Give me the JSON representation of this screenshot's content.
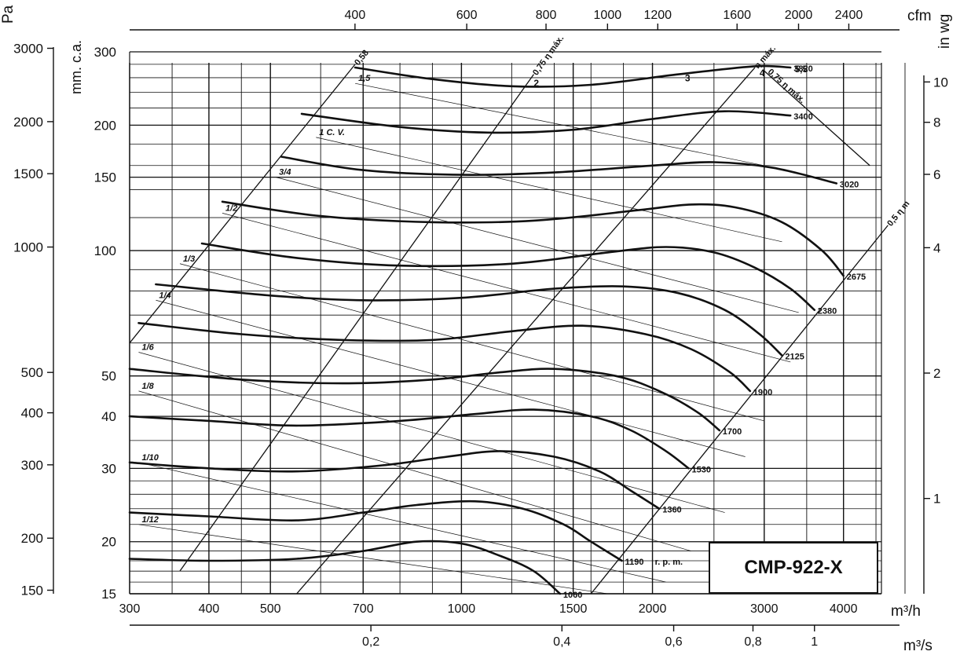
{
  "chart_data": {
    "type": "line",
    "model": "CMP-922-X",
    "axis_titles": {
      "left_outer": "Pa",
      "left_inner": "mm. c.a.",
      "right": "in wg",
      "top": "cfm",
      "bottom_primary": "m³/h",
      "bottom_secondary": "m³/s"
    },
    "x_scale": "log",
    "y_scale": "log",
    "x_range_m3h": [
      300,
      5000
    ],
    "y_range_mmca": [
      15,
      300
    ],
    "x_ticks_m3h": [
      300,
      400,
      500,
      700,
      1000,
      1500,
      2000,
      3000,
      4000
    ],
    "x_tick_labels_m3h": [
      "300",
      "400",
      "500",
      "700",
      "1000",
      "1500",
      "2000",
      "3000",
      "4000"
    ],
    "x_ticks_m3s": [
      0.2,
      0.4,
      0.6,
      0.8,
      1.0
    ],
    "x_tick_labels_m3s": [
      "0,2",
      "0,4",
      "0,6",
      "0,8",
      "1"
    ],
    "x_ticks_cfm": [
      400,
      600,
      800,
      1000,
      1200,
      1600,
      2000,
      2400
    ],
    "x_tick_labels_cfm": [
      "400",
      "600",
      "800",
      "1000",
      "1200",
      "1600",
      "2000",
      "2400"
    ],
    "y_ticks_mmca": [
      15,
      20,
      30,
      40,
      50,
      100,
      150,
      200,
      300
    ],
    "y_tick_labels_mmca": [
      "15",
      "20",
      "30",
      "40",
      "50",
      "100",
      "150",
      "200",
      "300"
    ],
    "y_ticks_pa": [
      150,
      200,
      300,
      400,
      500,
      1000,
      1500,
      2000,
      3000
    ],
    "y_tick_labels_pa": [
      "150",
      "200",
      "300",
      "400",
      "500",
      "1000",
      "1500",
      "2000",
      "3000"
    ],
    "y_ticks_inwg": [
      1,
      2,
      4,
      6,
      8,
      10
    ],
    "y_tick_labels_inwg": [
      "1",
      "2",
      "4",
      "6",
      "8",
      "10"
    ],
    "grid": true,
    "speed_unit_label": "r. p. m.",
    "series": [
      {
        "name": "3820",
        "x": [
          680,
          900,
          1200,
          1600,
          2200,
          2900,
          3300
        ],
        "y": [
          275,
          258,
          248,
          250,
          265,
          277,
          275
        ]
      },
      {
        "name": "3400",
        "x": [
          560,
          800,
          1100,
          1500,
          2000,
          2600,
          3300
        ],
        "y": [
          213,
          198,
          192,
          195,
          207,
          216,
          211
        ]
      },
      {
        "name": "3020",
        "x": [
          520,
          700,
          1000,
          1400,
          2000,
          2500,
          3100,
          3900
        ],
        "y": [
          168,
          156,
          152,
          154,
          160,
          163,
          158,
          145
        ]
      },
      {
        "name": "2675",
        "x": [
          420,
          600,
          900,
          1300,
          1900,
          2300,
          2700,
          3200,
          3700,
          4000
        ],
        "y": [
          131,
          121,
          117,
          118,
          125,
          129,
          127,
          117,
          100,
          87
        ]
      },
      {
        "name": "2380",
        "x": [
          390,
          550,
          800,
          1200,
          1700,
          2100,
          2500,
          2900,
          3300,
          3600
        ],
        "y": [
          104,
          96,
          92,
          93,
          99,
          102,
          99,
          91,
          81,
          72
        ]
      },
      {
        "name": "2125",
        "x": [
          330,
          500,
          700,
          1000,
          1400,
          1800,
          2200,
          2600,
          2950,
          3200
        ],
        "y": [
          83,
          78,
          76,
          77,
          81,
          82,
          79,
          72,
          63,
          56
        ]
      },
      {
        "name": "1900",
        "x": [
          310,
          450,
          650,
          900,
          1200,
          1550,
          1950,
          2300,
          2650,
          2850
        ],
        "y": [
          67,
          63,
          61,
          61,
          64,
          66,
          63,
          58,
          51,
          46
        ]
      },
      {
        "name": "1700",
        "x": [
          300,
          450,
          650,
          900,
          1150,
          1400,
          1750,
          2050,
          2350,
          2550
        ],
        "y": [
          52,
          49,
          48,
          49,
          51,
          52,
          50,
          46,
          41,
          37
        ]
      },
      {
        "name": "1530",
        "x": [
          300,
          400,
          550,
          800,
          1050,
          1300,
          1600,
          1850,
          2100,
          2280
        ],
        "y": [
          40,
          39,
          38,
          39,
          40.5,
          41.5,
          40,
          37,
          33,
          30
        ]
      },
      {
        "name": "1360",
        "x": [
          300,
          400,
          550,
          750,
          950,
          1150,
          1400,
          1650,
          1850,
          2050
        ],
        "y": [
          31,
          30,
          29.5,
          30.5,
          32,
          33,
          32,
          29.5,
          26.5,
          24
        ]
      },
      {
        "name": "1190",
        "x": [
          300,
          400,
          550,
          700,
          850,
          1050,
          1250,
          1450,
          1600,
          1790
        ],
        "y": [
          23.5,
          23,
          22.5,
          23.5,
          24.5,
          25,
          24,
          22,
          20,
          18
        ]
      },
      {
        "name": "1060",
        "x": [
          300,
          400,
          550,
          700,
          850,
          1000,
          1150,
          1300,
          1430
        ],
        "y": [
          18.2,
          18,
          18.2,
          19,
          20,
          19.8,
          18.5,
          17,
          15
        ]
      }
    ],
    "power_lines_label_unit": "C.V.",
    "power_lines": [
      {
        "label": "1,5",
        "x": [
          680,
          3000
        ],
        "y": [
          252,
          160
        ]
      },
      {
        "label": "1 C. V.",
        "x": [
          590,
          3200
        ],
        "y": [
          187,
          105
        ]
      },
      {
        "label": "3/4",
        "x": [
          510,
          3400
        ],
        "y": [
          150,
          71
        ]
      },
      {
        "label": "1/2",
        "x": [
          420,
          3300
        ],
        "y": [
          123,
          54
        ]
      },
      {
        "label": "1/3",
        "x": [
          360,
          3000
        ],
        "y": [
          93,
          39
        ]
      },
      {
        "label": "1/4",
        "x": [
          330,
          2800
        ],
        "y": [
          76,
          32
        ]
      },
      {
        "label": "1/6",
        "x": [
          310,
          2600
        ],
        "y": [
          57,
          23.5
        ]
      },
      {
        "label": "1/8",
        "x": [
          310,
          2300
        ],
        "y": [
          46,
          19
        ]
      },
      {
        "label": "1/10",
        "x": [
          310,
          2100
        ],
        "y": [
          31,
          16
        ]
      },
      {
        "label": "1/12",
        "x": [
          310,
          1700
        ],
        "y": [
          22,
          15
        ]
      }
    ],
    "efficiency_lines": [
      {
        "label": "0,58",
        "x": [
          300,
          680
        ],
        "y": [
          60,
          280
        ]
      },
      {
        "label": "0,75 η máx.",
        "x": [
          360,
          1300
        ],
        "y": [
          17,
          265
        ]
      },
      {
        "label": "η máx.",
        "x": [
          550,
          2900
        ],
        "y": [
          15,
          275
        ]
      },
      {
        "label": "0,75 η máx.",
        "x": [
          3000,
          4400
        ],
        "y": [
          270,
          160
        ]
      },
      {
        "label": "0,5 η m",
        "x": [
          1600,
          4700
        ],
        "y": [
          15,
          115
        ]
      }
    ],
    "point_labels": [
      {
        "text": "2",
        "x": 1300,
        "y": 248
      },
      {
        "text": "3",
        "x": 2250,
        "y": 255
      },
      {
        "text": "4",
        "x": 2950,
        "y": 262
      },
      {
        "text": "5,5",
        "x": 3350,
        "y": 268
      }
    ]
  }
}
